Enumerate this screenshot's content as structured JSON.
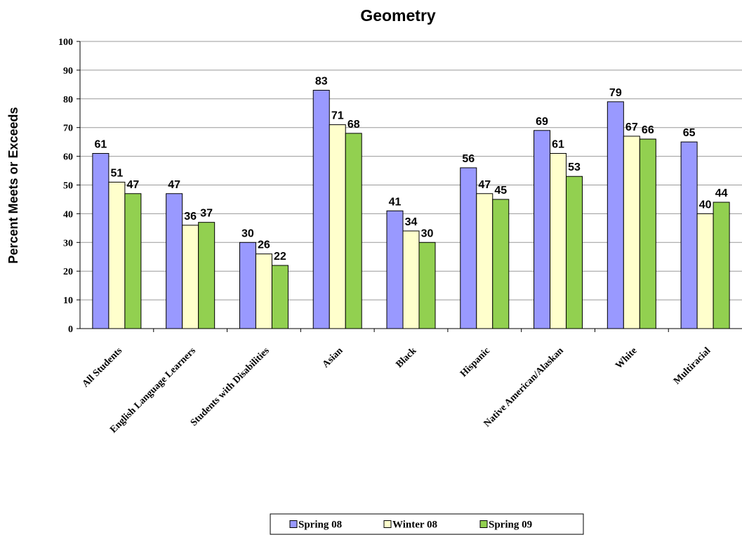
{
  "chart_data": {
    "type": "bar",
    "title": "Geometry",
    "xlabel": "",
    "ylabel": "Percent  Meets or Exceeds",
    "ylim": [
      0,
      100
    ],
    "yticks": [
      0,
      10,
      20,
      30,
      40,
      50,
      60,
      70,
      80,
      90,
      100
    ],
    "grid": true,
    "legend_position": "bottom",
    "categories": [
      "All Students",
      "English Language Learners",
      "Students with Disabilities",
      "Asian",
      "Black",
      "Hispanic",
      "Native American/Alaskan",
      "White",
      "Multiracial"
    ],
    "series": [
      {
        "name": "Spring 08",
        "color": "#9999ff",
        "values": [
          61,
          47,
          30,
          83,
          41,
          56,
          69,
          79,
          65
        ]
      },
      {
        "name": "Winter 08",
        "color": "#ffffcc",
        "values": [
          51,
          36,
          26,
          71,
          34,
          47,
          61,
          67,
          40
        ]
      },
      {
        "name": "Spring 09",
        "color": "#92d050",
        "values": [
          47,
          37,
          22,
          68,
          30,
          45,
          53,
          66,
          44
        ]
      }
    ]
  }
}
